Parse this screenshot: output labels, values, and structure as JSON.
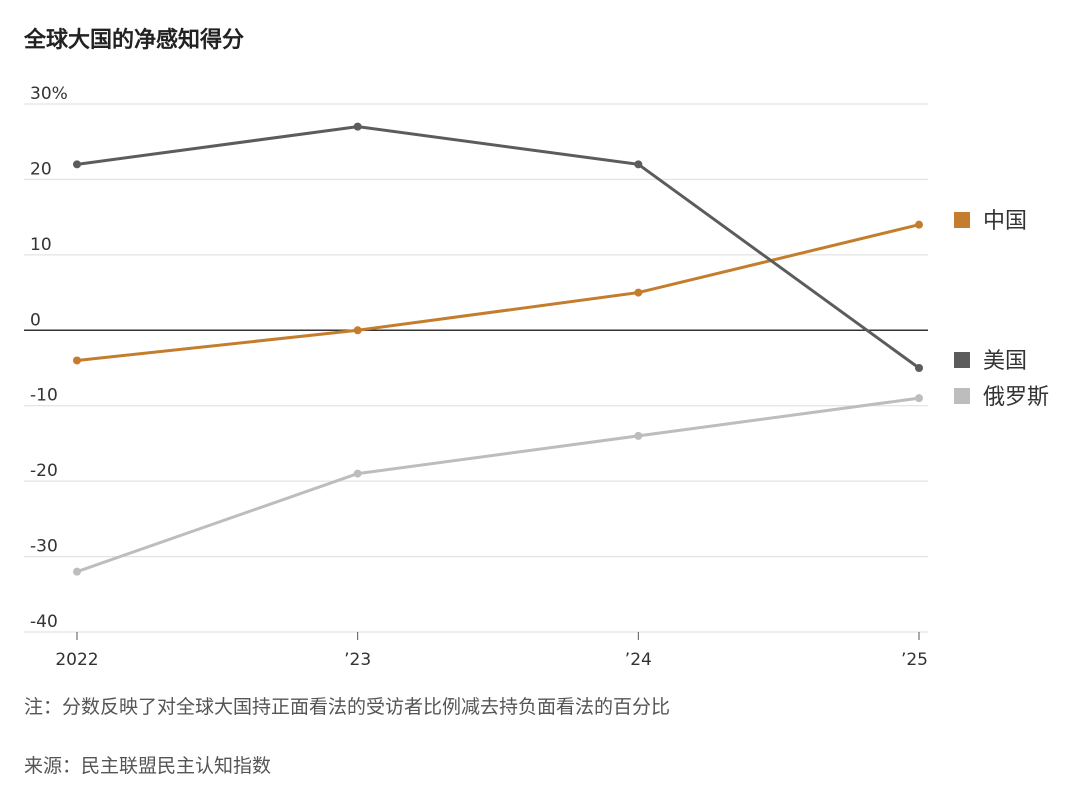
{
  "chart_data": {
    "type": "line",
    "title": "全球大国的净感知得分",
    "x": [
      "2022",
      "’23",
      "’24",
      "’25"
    ],
    "ylim": [
      -40,
      30
    ],
    "yticks": [
      {
        "value": 30,
        "label": "30%"
      },
      {
        "value": 20,
        "label": "20"
      },
      {
        "value": 10,
        "label": "10"
      },
      {
        "value": 0,
        "label": "0"
      },
      {
        "value": -10,
        "label": "-10"
      },
      {
        "value": -20,
        "label": "-20"
      },
      {
        "value": -30,
        "label": "-30"
      },
      {
        "value": -40,
        "label": "-40"
      }
    ],
    "grid": true,
    "legend_placement": "right",
    "series": [
      {
        "name": "中国",
        "color": "#c47d2d",
        "values": [
          -4,
          0,
          5,
          14
        ]
      },
      {
        "name": "美国",
        "color": "#5c5c5c",
        "values": [
          22,
          27,
          22,
          -5
        ]
      },
      {
        "name": "俄罗斯",
        "color": "#bdbdbd",
        "values": [
          -32,
          -19,
          -14,
          -9
        ]
      }
    ]
  },
  "note": "注：分数反映了对全球大国持正面看法的受访者比例减去持负面看法的百分比",
  "source": "来源：民主联盟民主认知指数"
}
